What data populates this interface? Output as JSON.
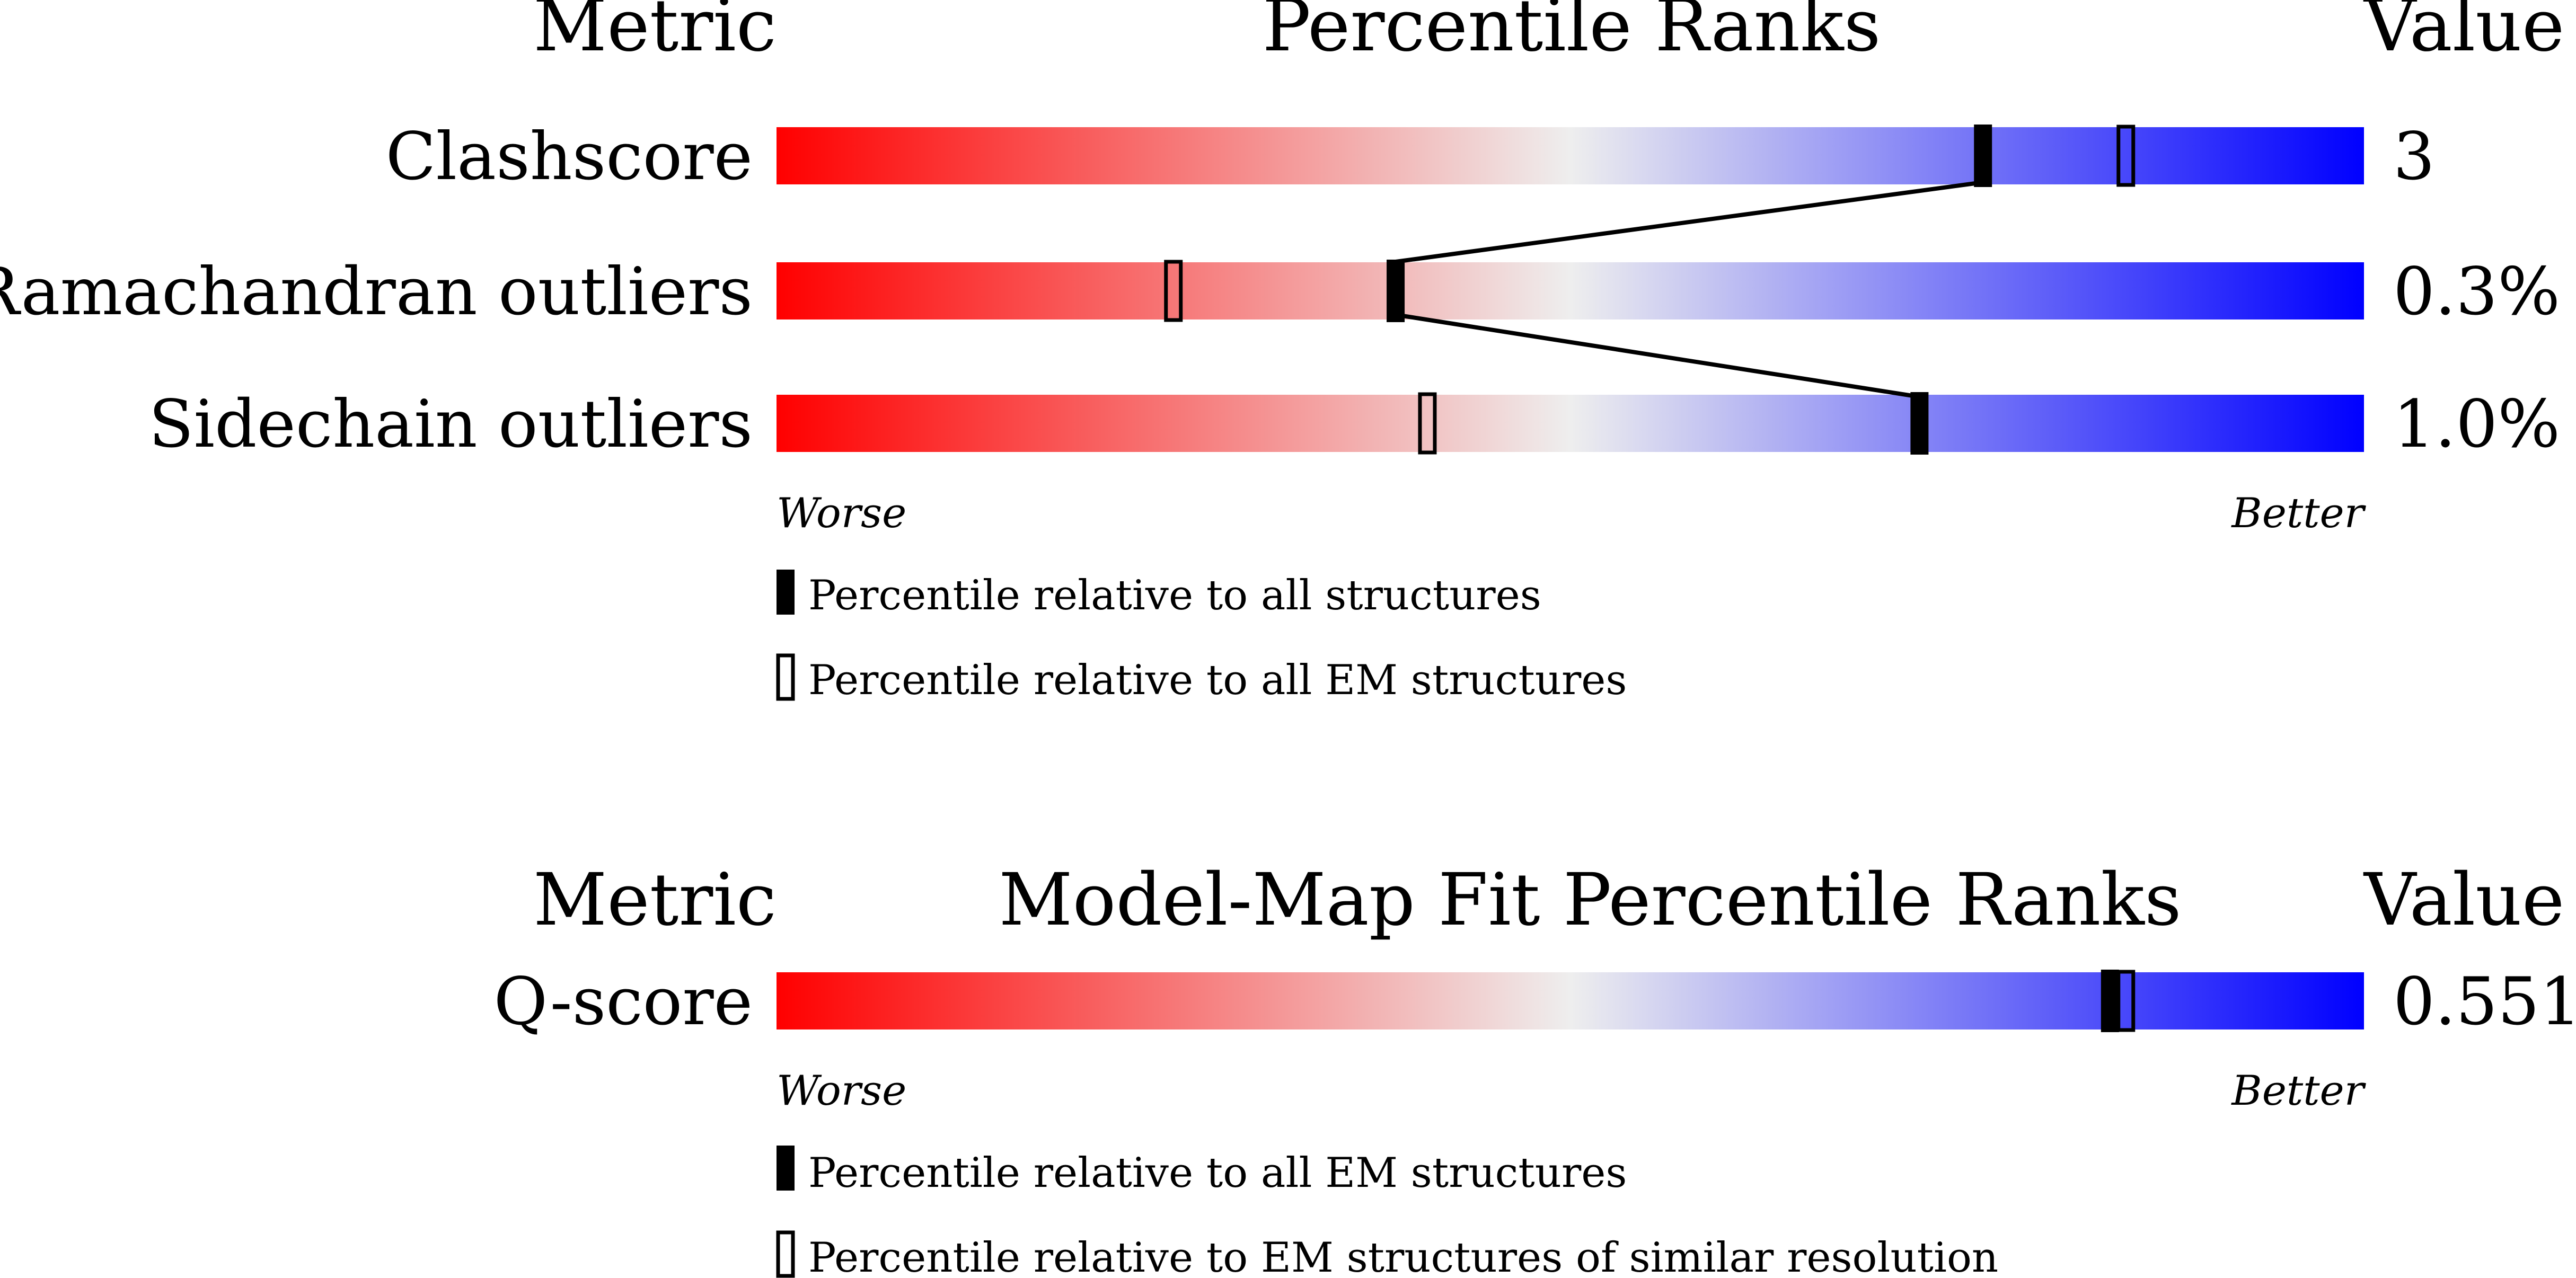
{
  "section1": {
    "header_metric": "Metric",
    "header_title": "Percentile Ranks",
    "header_value": "Value",
    "worse_label": "Worse",
    "better_label": "Better",
    "legend_filled": "Percentile relative to all structures",
    "legend_open": "Percentile relative to all EM structures"
  },
  "section2": {
    "header_metric": "Metric",
    "header_title": "Model-Map Fit Percentile Ranks",
    "header_value": "Value",
    "worse_label": "Worse",
    "better_label": "Better",
    "legend_filled": "Percentile relative to all EM structures",
    "legend_open": "Percentile relative to EM structures of similar resolution"
  },
  "colors": {
    "worse": "#ff0000",
    "middle": "#eeeeee",
    "better": "#0000ff",
    "marker": "#000000"
  },
  "chart_data": [
    {
      "type": "percentile-slider",
      "title": "Percentile Ranks",
      "x_range": [
        0,
        100
      ],
      "x_direction": "worse-to-better",
      "metrics": [
        {
          "label": "Clashscore",
          "value": "3",
          "percentile_filled": 76,
          "percentile_open": 85
        },
        {
          "label": "Ramachandran outliers",
          "value": "0.3%",
          "percentile_filled": 39,
          "percentile_open": 25
        },
        {
          "label": "Sidechain outliers",
          "value": "1.0%",
          "percentile_filled": 72,
          "percentile_open": 41
        }
      ]
    },
    {
      "type": "percentile-slider",
      "title": "Model-Map Fit Percentile Ranks",
      "x_range": [
        0,
        100
      ],
      "x_direction": "worse-to-better",
      "metrics": [
        {
          "label": "Q-score",
          "value": "0.551",
          "percentile_filled": 84,
          "percentile_open": 85
        }
      ]
    }
  ]
}
